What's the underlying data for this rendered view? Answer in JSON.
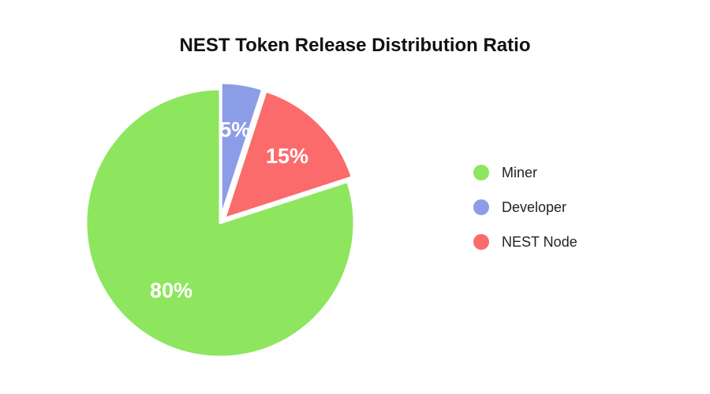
{
  "chart_data": {
    "type": "pie",
    "title": "NEST Token Release Distribution Ratio",
    "legend_position": "right",
    "slices": [
      {
        "name": "Miner",
        "value": 80,
        "label": "80%",
        "color": "#8ee55e",
        "exploded": false
      },
      {
        "name": "Developer",
        "value": 5,
        "label": "5%",
        "color": "#8c9de8",
        "exploded": true
      },
      {
        "name": "NEST Node",
        "value": 15,
        "label": "15%",
        "color": "#fb6b6b",
        "exploded": true
      }
    ]
  }
}
